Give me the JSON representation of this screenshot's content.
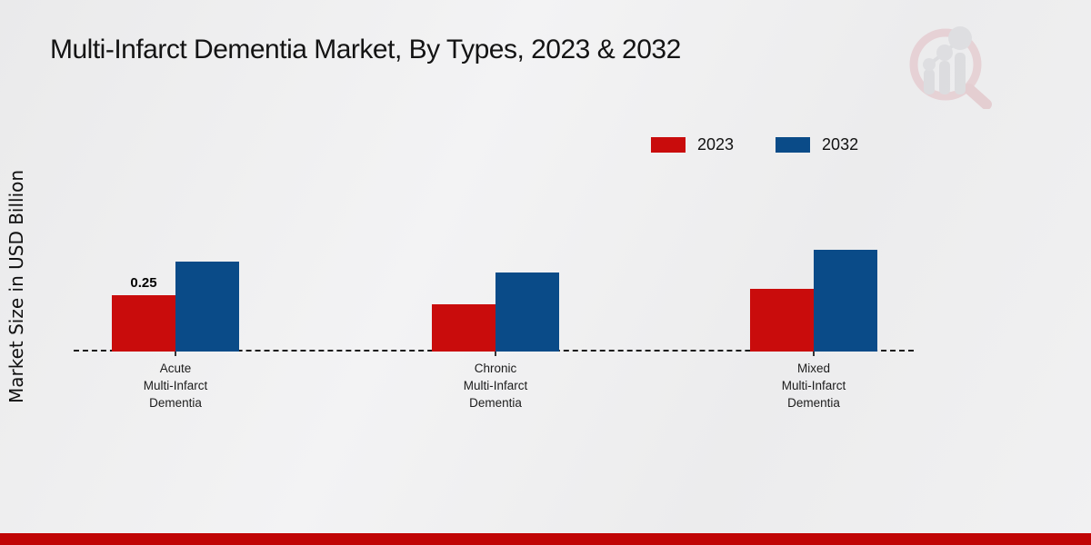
{
  "title": "Multi-Infarct Dementia Market, By Types, 2023 & 2032",
  "y_axis_label": "Market Size in USD Billion",
  "legend": {
    "items": [
      {
        "label": "2023",
        "color": "#c90c0c"
      },
      {
        "label": "2032",
        "color": "#0a4b88"
      }
    ]
  },
  "chart_data": {
    "type": "bar",
    "title": "Multi-Infarct Dementia Market, By Types, 2023 & 2032",
    "xlabel": "",
    "ylabel": "Market Size in USD Billion",
    "categories": [
      "Acute Multi-Infarct Dementia",
      "Chronic Multi-Infarct Dementia",
      "Mixed Multi-Infarct Dementia"
    ],
    "category_lines": [
      [
        "Acute",
        "Multi-Infarct",
        "Dementia"
      ],
      [
        "Chronic",
        "Multi-Infarct",
        "Dementia"
      ],
      [
        "Mixed",
        "Multi-Infarct",
        "Dementia"
      ]
    ],
    "series": [
      {
        "name": "2023",
        "color": "#c90c0c",
        "values": [
          0.25,
          0.21,
          0.28
        ],
        "labels": [
          "0.25",
          "",
          ""
        ]
      },
      {
        "name": "2032",
        "color": "#0a4b88",
        "values": [
          0.4,
          0.35,
          0.45
        ],
        "labels": [
          "",
          "",
          ""
        ]
      }
    ],
    "ylim": [
      0,
      0.5
    ],
    "grid": false,
    "y_axis_visible": false,
    "baseline_style": "dashed",
    "legend_position": "top-right"
  },
  "logo": {
    "name": "market-research-magnifier-logo"
  },
  "footer": {
    "bar_color": "#c00505"
  }
}
